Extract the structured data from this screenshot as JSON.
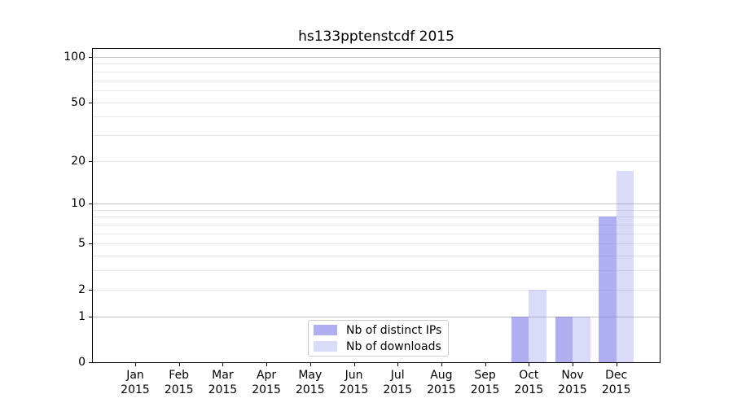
{
  "chart_data": {
    "type": "bar",
    "title": "hs133pptenstcdf 2015",
    "year_label": "2015",
    "categories": [
      "Jan",
      "Feb",
      "Mar",
      "Apr",
      "May",
      "Jun",
      "Jul",
      "Aug",
      "Sep",
      "Oct",
      "Nov",
      "Dec"
    ],
    "series": [
      {
        "name": "Nb of distinct IPs",
        "color": "rgba(109,109,232,0.55)",
        "values": [
          0,
          0,
          0,
          0,
          0,
          0,
          0,
          0,
          0,
          1,
          1,
          8
        ]
      },
      {
        "name": "Nb of downloads",
        "color": "rgba(109,109,232,0.25)",
        "values": [
          0,
          0,
          0,
          0,
          0,
          0,
          0,
          0,
          0,
          2,
          1,
          17
        ]
      }
    ],
    "y_axis": {
      "scale": "log1p",
      "tick_values": [
        0,
        1,
        2,
        5,
        10,
        20,
        50,
        100
      ],
      "major_gridlines": [
        1,
        10,
        100
      ],
      "minor_gridlines": [
        2,
        3,
        4,
        5,
        6,
        7,
        8,
        9,
        20,
        30,
        40,
        50,
        60,
        70,
        80,
        90
      ],
      "range": [
        0,
        113
      ]
    },
    "legend": {
      "position": "lower center"
    },
    "grid": "horizontal",
    "colors": {
      "bar_distinct_ips_solid": "#aaaaef",
      "bar_downloads_solid": "#dadaf8",
      "grid_major": "#c2c2c2",
      "grid_minor": "#e6e6e6",
      "axis": "#000000",
      "legend_border": "#cbcbcb"
    }
  }
}
